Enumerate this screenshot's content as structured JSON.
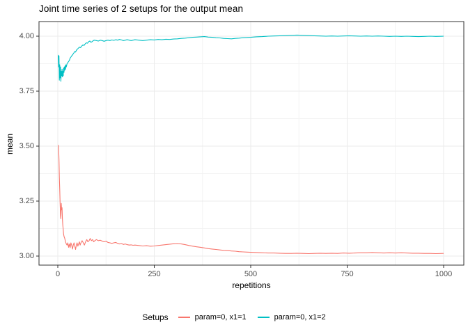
{
  "chart_data": {
    "type": "line",
    "title": "Joint time series of 2 setups for the output mean",
    "xlabel": "repetitions",
    "ylabel": "mean",
    "legend_title": "Setups",
    "legend_position": "bottom",
    "grid": true,
    "xlim": [
      -49,
      1052
    ],
    "ylim": [
      2.953,
      4.066
    ],
    "x_ticks": [
      0,
      250,
      500,
      750,
      1000
    ],
    "x_tick_labels": [
      "0",
      "250",
      "500",
      "750",
      "1000"
    ],
    "x_minor_ticks": [
      125,
      375,
      625,
      875
    ],
    "y_ticks": [
      4.0,
      3.75,
      3.5,
      3.25,
      3.0
    ],
    "y_tick_labels": [
      "4.00",
      "3.75",
      "3.50",
      "3.25",
      "3.00"
    ],
    "y_minor_ticks": [
      3.875,
      3.625,
      3.375,
      3.125
    ],
    "colors": {
      "grid_major": "#ebebeb",
      "grid_minor": "#f3f3f3",
      "panel_border": "#333333",
      "tick_mark": "#333333",
      "tick_text": "#4d4d4d",
      "text": "#000000",
      "background": "#ffffff"
    },
    "series": [
      {
        "name": "param=0, x1=1",
        "color": "#F8766D",
        "points": [
          [
            1,
            3.505
          ],
          [
            2,
            3.5
          ],
          [
            3,
            3.44
          ],
          [
            4,
            3.36
          ],
          [
            5,
            3.3
          ],
          [
            6,
            3.24
          ],
          [
            7,
            3.185
          ],
          [
            8,
            3.17
          ],
          [
            9,
            3.24
          ],
          [
            10,
            3.21
          ],
          [
            11,
            3.22
          ],
          [
            12,
            3.17
          ],
          [
            13,
            3.14
          ],
          [
            14,
            3.12
          ],
          [
            15,
            3.1
          ],
          [
            16,
            3.09
          ],
          [
            17,
            3.085
          ],
          [
            18,
            3.08
          ],
          [
            20,
            3.065
          ],
          [
            22,
            3.055
          ],
          [
            24,
            3.05
          ],
          [
            26,
            3.06
          ],
          [
            28,
            3.04
          ],
          [
            30,
            3.055
          ],
          [
            32,
            3.038
          ],
          [
            34,
            3.06
          ],
          [
            36,
            3.05
          ],
          [
            38,
            3.032
          ],
          [
            40,
            3.05
          ],
          [
            42,
            3.06
          ],
          [
            44,
            3.045
          ],
          [
            46,
            3.03
          ],
          [
            48,
            3.05
          ],
          [
            50,
            3.06
          ],
          [
            52,
            3.045
          ],
          [
            54,
            3.055
          ],
          [
            56,
            3.065
          ],
          [
            58,
            3.05
          ],
          [
            60,
            3.06
          ],
          [
            63,
            3.07
          ],
          [
            66,
            3.06
          ],
          [
            69,
            3.05
          ],
          [
            72,
            3.065
          ],
          [
            75,
            3.075
          ],
          [
            78,
            3.065
          ],
          [
            81,
            3.07
          ],
          [
            84,
            3.08
          ],
          [
            87,
            3.07
          ],
          [
            90,
            3.075
          ],
          [
            93,
            3.065
          ],
          [
            96,
            3.07
          ],
          [
            100,
            3.075
          ],
          [
            105,
            3.07
          ],
          [
            110,
            3.072
          ],
          [
            115,
            3.068
          ],
          [
            120,
            3.065
          ],
          [
            125,
            3.068
          ],
          [
            130,
            3.062
          ],
          [
            135,
            3.06
          ],
          [
            140,
            3.058
          ],
          [
            145,
            3.06
          ],
          [
            150,
            3.062
          ],
          [
            155,
            3.058
          ],
          [
            160,
            3.055
          ],
          [
            165,
            3.057
          ],
          [
            170,
            3.053
          ],
          [
            175,
            3.055
          ],
          [
            180,
            3.052
          ],
          [
            185,
            3.05
          ],
          [
            190,
            3.051
          ],
          [
            195,
            3.049
          ],
          [
            200,
            3.05
          ],
          [
            210,
            3.048
          ],
          [
            220,
            3.046
          ],
          [
            230,
            3.047
          ],
          [
            240,
            3.045
          ],
          [
            250,
            3.046
          ],
          [
            260,
            3.048
          ],
          [
            270,
            3.05
          ],
          [
            280,
            3.052
          ],
          [
            290,
            3.054
          ],
          [
            300,
            3.056
          ],
          [
            310,
            3.057
          ],
          [
            320,
            3.055
          ],
          [
            330,
            3.052
          ],
          [
            340,
            3.048
          ],
          [
            350,
            3.045
          ],
          [
            360,
            3.042
          ],
          [
            370,
            3.04
          ],
          [
            380,
            3.037
          ],
          [
            390,
            3.034
          ],
          [
            400,
            3.032
          ],
          [
            410,
            3.03
          ],
          [
            420,
            3.028
          ],
          [
            430,
            3.026
          ],
          [
            440,
            3.025
          ],
          [
            450,
            3.023
          ],
          [
            460,
            3.022
          ],
          [
            470,
            3.02
          ],
          [
            480,
            3.019
          ],
          [
            490,
            3.018
          ],
          [
            500,
            3.017
          ],
          [
            515,
            3.016
          ],
          [
            530,
            3.015
          ],
          [
            545,
            3.014
          ],
          [
            560,
            3.014
          ],
          [
            575,
            3.013
          ],
          [
            590,
            3.012
          ],
          [
            605,
            3.012
          ],
          [
            620,
            3.013
          ],
          [
            635,
            3.012
          ],
          [
            650,
            3.011
          ],
          [
            665,
            3.012
          ],
          [
            680,
            3.013
          ],
          [
            695,
            3.012
          ],
          [
            710,
            3.013
          ],
          [
            725,
            3.012
          ],
          [
            740,
            3.014
          ],
          [
            755,
            3.013
          ],
          [
            770,
            3.014
          ],
          [
            785,
            3.015
          ],
          [
            800,
            3.015
          ],
          [
            815,
            3.016
          ],
          [
            830,
            3.015
          ],
          [
            845,
            3.014
          ],
          [
            860,
            3.015
          ],
          [
            875,
            3.014
          ],
          [
            890,
            3.015
          ],
          [
            905,
            3.014
          ],
          [
            920,
            3.013
          ],
          [
            935,
            3.013
          ],
          [
            950,
            3.012
          ],
          [
            965,
            3.012
          ],
          [
            980,
            3.011
          ],
          [
            1000,
            3.012
          ]
        ]
      },
      {
        "name": "param=0, x1=2",
        "color": "#00BFC4",
        "points": [
          [
            1,
            3.915
          ],
          [
            2,
            3.86
          ],
          [
            3,
            3.91
          ],
          [
            4,
            3.8
          ],
          [
            5,
            3.87
          ],
          [
            6,
            3.81
          ],
          [
            7,
            3.86
          ],
          [
            8,
            3.795
          ],
          [
            9,
            3.84
          ],
          [
            10,
            3.82
          ],
          [
            11,
            3.85
          ],
          [
            12,
            3.815
          ],
          [
            13,
            3.84
          ],
          [
            14,
            3.82
          ],
          [
            15,
            3.855
          ],
          [
            16,
            3.835
          ],
          [
            17,
            3.86
          ],
          [
            18,
            3.845
          ],
          [
            19,
            3.865
          ],
          [
            20,
            3.85
          ],
          [
            21,
            3.87
          ],
          [
            22,
            3.86
          ],
          [
            24,
            3.875
          ],
          [
            26,
            3.88
          ],
          [
            28,
            3.885
          ],
          [
            30,
            3.89
          ],
          [
            32,
            3.9
          ],
          [
            34,
            3.905
          ],
          [
            36,
            3.91
          ],
          [
            38,
            3.915
          ],
          [
            40,
            3.92
          ],
          [
            42,
            3.925
          ],
          [
            44,
            3.93
          ],
          [
            46,
            3.928
          ],
          [
            48,
            3.935
          ],
          [
            50,
            3.94
          ],
          [
            53,
            3.945
          ],
          [
            56,
            3.95
          ],
          [
            59,
            3.948
          ],
          [
            62,
            3.955
          ],
          [
            65,
            3.96
          ],
          [
            68,
            3.958
          ],
          [
            71,
            3.965
          ],
          [
            74,
            3.97
          ],
          [
            77,
            3.968
          ],
          [
            80,
            3.975
          ],
          [
            83,
            3.978
          ],
          [
            86,
            3.972
          ],
          [
            89,
            3.975
          ],
          [
            92,
            3.98
          ],
          [
            95,
            3.982
          ],
          [
            100,
            3.98
          ],
          [
            105,
            3.978
          ],
          [
            110,
            3.982
          ],
          [
            115,
            3.98
          ],
          [
            120,
            3.977
          ],
          [
            125,
            3.98
          ],
          [
            130,
            3.982
          ],
          [
            135,
            3.98
          ],
          [
            140,
            3.983
          ],
          [
            145,
            3.981
          ],
          [
            150,
            3.984
          ],
          [
            155,
            3.982
          ],
          [
            160,
            3.985
          ],
          [
            165,
            3.983
          ],
          [
            170,
            3.98
          ],
          [
            175,
            3.982
          ],
          [
            180,
            3.984
          ],
          [
            185,
            3.982
          ],
          [
            190,
            3.98
          ],
          [
            195,
            3.982
          ],
          [
            200,
            3.984
          ],
          [
            210,
            3.982
          ],
          [
            220,
            3.98
          ],
          [
            230,
            3.982
          ],
          [
            240,
            3.984
          ],
          [
            250,
            3.983
          ],
          [
            260,
            3.985
          ],
          [
            270,
            3.984
          ],
          [
            280,
            3.986
          ],
          [
            290,
            3.985
          ],
          [
            300,
            3.987
          ],
          [
            310,
            3.988
          ],
          [
            320,
            3.99
          ],
          [
            330,
            3.991
          ],
          [
            340,
            3.993
          ],
          [
            350,
            3.995
          ],
          [
            360,
            3.996
          ],
          [
            370,
            3.997
          ],
          [
            380,
            3.998
          ],
          [
            390,
            3.996
          ],
          [
            400,
            3.995
          ],
          [
            410,
            3.993
          ],
          [
            420,
            3.992
          ],
          [
            430,
            3.99
          ],
          [
            440,
            3.989
          ],
          [
            450,
            3.988
          ],
          [
            460,
            3.99
          ],
          [
            470,
            3.991
          ],
          [
            480,
            3.993
          ],
          [
            490,
            3.994
          ],
          [
            500,
            3.995
          ],
          [
            515,
            3.997
          ],
          [
            530,
            3.998
          ],
          [
            545,
            4.0
          ],
          [
            560,
            4.001
          ],
          [
            575,
            4.002
          ],
          [
            590,
            4.003
          ],
          [
            605,
            4.004
          ],
          [
            620,
            4.005
          ],
          [
            635,
            4.004
          ],
          [
            650,
            4.003
          ],
          [
            665,
            4.002
          ],
          [
            680,
            4.001
          ],
          [
            695,
            4.0
          ],
          [
            710,
            4.001
          ],
          [
            725,
            4.0
          ],
          [
            740,
            4.001
          ],
          [
            755,
            4.002
          ],
          [
            770,
            4.001
          ],
          [
            785,
            4.0
          ],
          [
            800,
            4.001
          ],
          [
            815,
            4.0
          ],
          [
            830,
            4.001
          ],
          [
            845,
            4.0
          ],
          [
            860,
            3.999
          ],
          [
            875,
            4.0
          ],
          [
            890,
            3.999
          ],
          [
            905,
            4.0
          ],
          [
            920,
            3.999
          ],
          [
            935,
            3.998
          ],
          [
            950,
            3.999
          ],
          [
            965,
            4.0
          ],
          [
            980,
            3.999
          ],
          [
            1000,
            4.0
          ]
        ]
      }
    ]
  }
}
